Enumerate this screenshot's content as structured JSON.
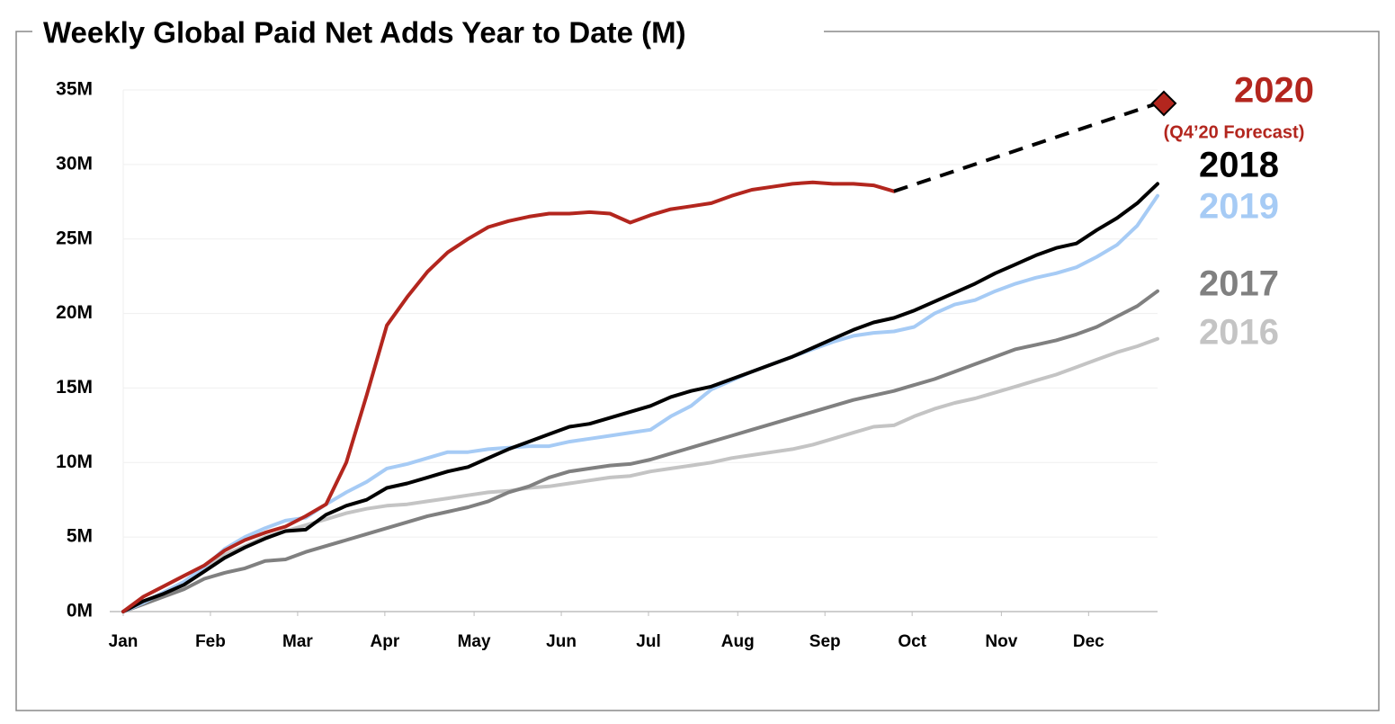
{
  "chart_data": {
    "type": "line",
    "title": "Weekly Global Paid Net Adds Year to Date (M)",
    "x": [
      0,
      1,
      2,
      3,
      4,
      5,
      6,
      7,
      8,
      9,
      10,
      11,
      12,
      13,
      14,
      15,
      16,
      17,
      18,
      19,
      20,
      21,
      22,
      23,
      24,
      25,
      26,
      27,
      28,
      29,
      30,
      31,
      32,
      33,
      34,
      35,
      36,
      37,
      38,
      39,
      40,
      41,
      42,
      43,
      44,
      45,
      46,
      47,
      48,
      49,
      50,
      51
    ],
    "xlim": [
      0,
      51
    ],
    "xticks": [
      {
        "value": 0,
        "label": "Jan"
      },
      {
        "value": 4.3,
        "label": "Feb"
      },
      {
        "value": 8.6,
        "label": "Mar"
      },
      {
        "value": 12.9,
        "label": "Apr"
      },
      {
        "value": 17.3,
        "label": "May"
      },
      {
        "value": 21.6,
        "label": "Jun"
      },
      {
        "value": 25.9,
        "label": "Jul"
      },
      {
        "value": 30.3,
        "label": "Aug"
      },
      {
        "value": 34.6,
        "label": "Sep"
      },
      {
        "value": 38.9,
        "label": "Oct"
      },
      {
        "value": 43.3,
        "label": "Nov"
      },
      {
        "value": 47.6,
        "label": "Dec"
      }
    ],
    "ylim": [
      0,
      35
    ],
    "yticks": [
      {
        "value": 0,
        "label": "0M"
      },
      {
        "value": 5,
        "label": "5M"
      },
      {
        "value": 10,
        "label": "10M"
      },
      {
        "value": 15,
        "label": "15M"
      },
      {
        "value": 20,
        "label": "20M"
      },
      {
        "value": 25,
        "label": "25M"
      },
      {
        "value": 30,
        "label": "30M"
      },
      {
        "value": 35,
        "label": "35M"
      }
    ],
    "grid": true,
    "series": [
      {
        "name": "2020",
        "color": "#b3261e",
        "values": [
          0,
          1.0,
          1.7,
          2.4,
          3.1,
          4.1,
          4.8,
          5.3,
          5.7,
          6.4,
          7.2,
          10.0,
          14.5,
          19.2,
          21.1,
          22.8,
          24.1,
          25.0,
          25.8,
          26.2,
          26.5,
          26.7,
          26.7,
          26.8,
          26.7,
          26.1,
          26.6,
          27.0,
          27.2,
          27.4,
          27.9,
          28.3,
          28.5,
          28.7,
          28.8,
          28.7,
          28.7,
          28.6,
          28.2,
          null,
          null,
          null,
          null,
          null,
          null,
          null,
          null,
          null,
          null,
          null,
          null,
          null
        ]
      },
      {
        "name": "(Q4’20 Forecast)",
        "color": "#000000",
        "label_color": "#b3261e",
        "dashed": true,
        "marker": "diamond",
        "marker_color": "#b3261e",
        "x": [
          38,
          51
        ],
        "values": [
          28.2,
          34.1
        ]
      },
      {
        "name": "2018",
        "color": "#000000",
        "values": [
          0,
          0.7,
          1.2,
          1.8,
          2.7,
          3.6,
          4.3,
          4.9,
          5.4,
          5.5,
          6.5,
          7.1,
          7.5,
          8.3,
          8.6,
          9.0,
          9.4,
          9.7,
          10.3,
          10.9,
          11.4,
          11.9,
          12.4,
          12.6,
          13.0,
          13.4,
          13.8,
          14.4,
          14.8,
          15.1,
          15.6,
          16.1,
          16.6,
          17.1,
          17.7,
          18.3,
          18.9,
          19.4,
          19.7,
          20.2,
          20.8,
          21.4,
          22.0,
          22.7,
          23.3,
          23.9,
          24.4,
          24.7,
          25.6,
          26.4,
          27.4,
          28.7
        ]
      },
      {
        "name": "2019",
        "color": "#a6cbf5",
        "values": [
          0,
          0.6,
          1.3,
          2.0,
          3.0,
          4.2,
          5.0,
          5.6,
          6.1,
          6.3,
          7.2,
          8.0,
          8.7,
          9.6,
          9.9,
          10.3,
          10.7,
          10.7,
          10.9,
          11.0,
          11.1,
          11.1,
          11.4,
          11.6,
          11.8,
          12.0,
          12.2,
          13.1,
          13.8,
          14.9,
          15.5,
          16.1,
          16.6,
          17.1,
          17.6,
          18.1,
          18.5,
          18.7,
          18.8,
          19.1,
          20.0,
          20.6,
          20.9,
          21.5,
          22.0,
          22.4,
          22.7,
          23.1,
          23.8,
          24.6,
          25.9,
          27.9
        ]
      },
      {
        "name": "2017",
        "color": "#808080",
        "values": [
          0,
          0.5,
          1.0,
          1.5,
          2.2,
          2.6,
          2.9,
          3.4,
          3.5,
          4.0,
          4.4,
          4.8,
          5.2,
          5.6,
          6.0,
          6.4,
          6.7,
          7.0,
          7.4,
          8.0,
          8.4,
          9.0,
          9.4,
          9.6,
          9.8,
          9.9,
          10.2,
          10.6,
          11.0,
          11.4,
          11.8,
          12.2,
          12.6,
          13.0,
          13.4,
          13.8,
          14.2,
          14.5,
          14.8,
          15.2,
          15.6,
          16.1,
          16.6,
          17.1,
          17.6,
          17.9,
          18.2,
          18.6,
          19.1,
          19.8,
          20.5,
          21.5
        ]
      },
      {
        "name": "2016",
        "color": "#c4c4c4",
        "values": [
          0,
          0.6,
          1.3,
          2.0,
          3.0,
          3.8,
          4.4,
          5.0,
          5.4,
          5.8,
          6.2,
          6.6,
          6.9,
          7.1,
          7.2,
          7.4,
          7.6,
          7.8,
          8.0,
          8.1,
          8.3,
          8.4,
          8.6,
          8.8,
          9.0,
          9.1,
          9.4,
          9.6,
          9.8,
          10.0,
          10.3,
          10.5,
          10.7,
          10.9,
          11.2,
          11.6,
          12.0,
          12.4,
          12.5,
          13.1,
          13.6,
          14.0,
          14.3,
          14.7,
          15.1,
          15.5,
          15.9,
          16.4,
          16.9,
          17.4,
          17.8,
          18.3
        ]
      }
    ]
  }
}
